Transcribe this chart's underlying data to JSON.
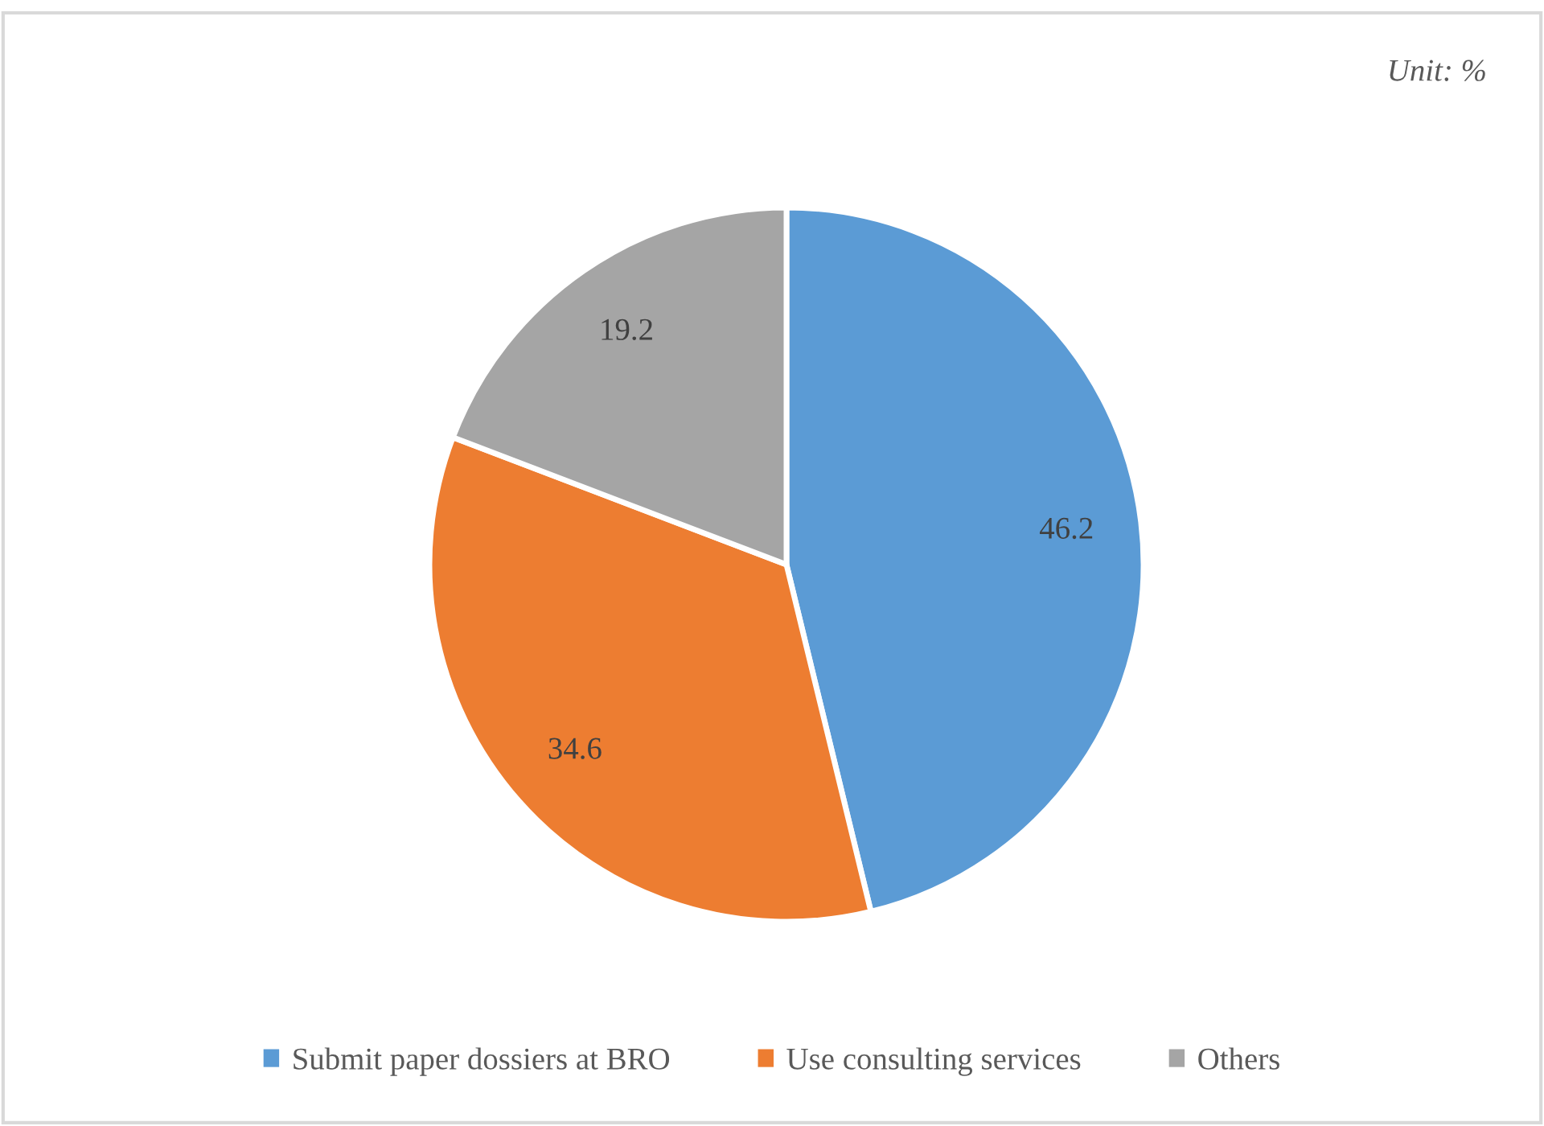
{
  "chart_data": {
    "type": "pie",
    "categories": [
      "Submit paper dossiers at BRO",
      "Use consulting services",
      "Others"
    ],
    "values": [
      46.2,
      34.6,
      19.2
    ],
    "colors": [
      "#5b9bd5",
      "#ed7d31",
      "#a5a5a5"
    ],
    "data_labels": true,
    "legend": "bottom",
    "annotations": [
      "Unit: %"
    ]
  }
}
